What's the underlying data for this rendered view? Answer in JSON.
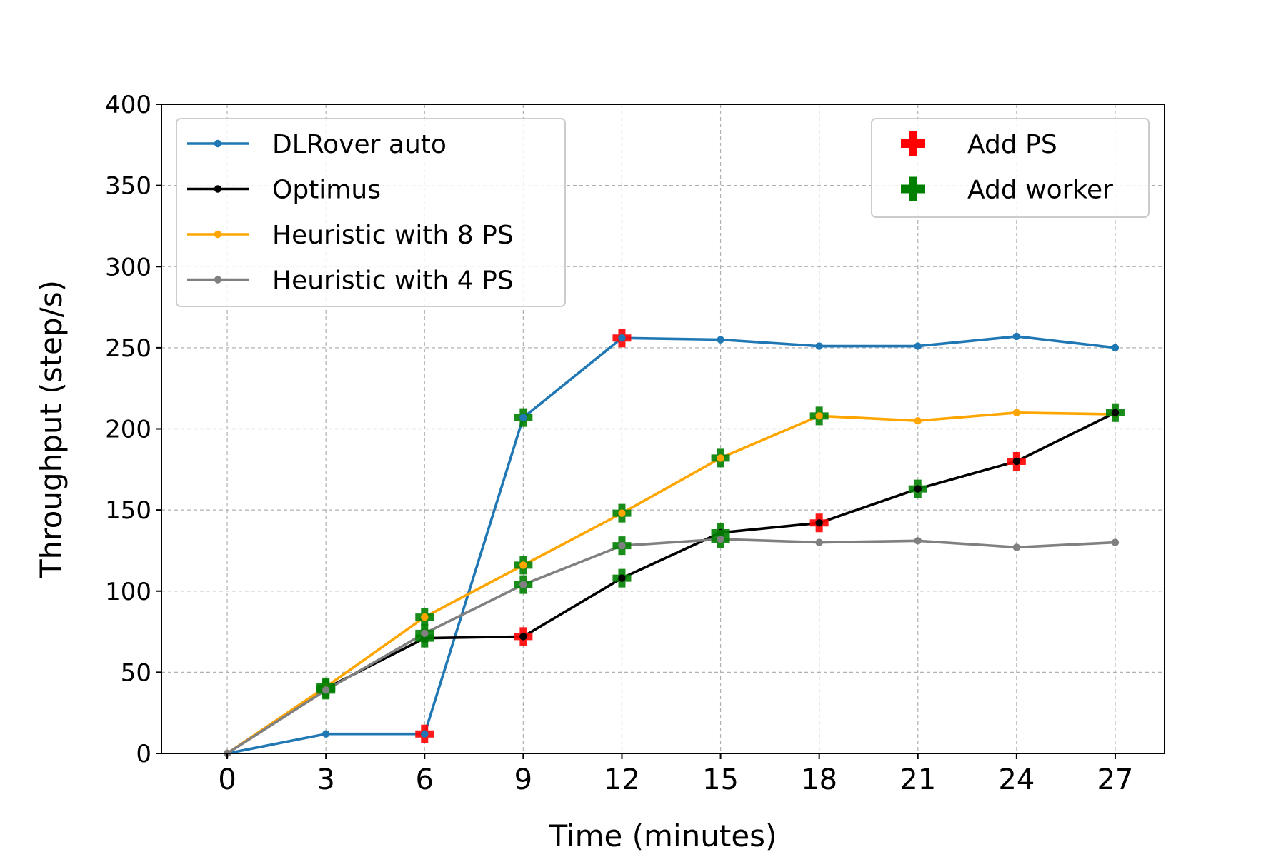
{
  "chart_data": {
    "type": "line",
    "xlabel": "Time (minutes)",
    "ylabel": "Throughput (step/s)",
    "xlim": [
      -2,
      28.5
    ],
    "ylim": [
      0,
      400
    ],
    "x_ticks": [
      0,
      3,
      6,
      9,
      12,
      15,
      18,
      21,
      24,
      27
    ],
    "y_ticks": [
      0,
      50,
      100,
      150,
      200,
      250,
      300,
      350,
      400
    ],
    "grid": true,
    "x": [
      0,
      3,
      6,
      9,
      12,
      15,
      18,
      21,
      24,
      27
    ],
    "series": [
      {
        "name": "DLRover auto",
        "color": "#1f77b4",
        "values": [
          0,
          12,
          12,
          207,
          256,
          255,
          251,
          251,
          257,
          250
        ]
      },
      {
        "name": "Optimus",
        "color": "#000000",
        "values": [
          0,
          40,
          71,
          72,
          108,
          136,
          142,
          163,
          180,
          210
        ]
      },
      {
        "name": "Heuristic with 8 PS",
        "color": "#ffa500",
        "values": [
          0,
          41,
          84,
          116,
          148,
          182,
          208,
          205,
          210,
          209
        ]
      },
      {
        "name": "Heuristic with 4 PS",
        "color": "#808080",
        "values": [
          0,
          39,
          74,
          104,
          128,
          132,
          130,
          131,
          127,
          130
        ]
      }
    ],
    "legend_position": "upper-left",
    "event_markers": {
      "legend_position": "upper-right",
      "types": [
        {
          "name": "Add PS",
          "color": "#ff0000"
        },
        {
          "name": "Add worker",
          "color": "#008000"
        }
      ],
      "points": [
        {
          "series": "DLRover auto",
          "x": 6,
          "y": 12,
          "type": "Add PS"
        },
        {
          "series": "DLRover auto",
          "x": 9,
          "y": 207,
          "type": "Add worker"
        },
        {
          "series": "DLRover auto",
          "x": 12,
          "y": 256,
          "type": "Add PS"
        },
        {
          "series": "Optimus",
          "x": 3,
          "y": 40,
          "type": "Add worker"
        },
        {
          "series": "Optimus",
          "x": 6,
          "y": 71,
          "type": "Add worker"
        },
        {
          "series": "Optimus",
          "x": 9,
          "y": 72,
          "type": "Add PS"
        },
        {
          "series": "Optimus",
          "x": 12,
          "y": 108,
          "type": "Add worker"
        },
        {
          "series": "Optimus",
          "x": 15,
          "y": 136,
          "type": "Add worker"
        },
        {
          "series": "Optimus",
          "x": 18,
          "y": 142,
          "type": "Add PS"
        },
        {
          "series": "Optimus",
          "x": 21,
          "y": 163,
          "type": "Add worker"
        },
        {
          "series": "Optimus",
          "x": 24,
          "y": 180,
          "type": "Add PS"
        },
        {
          "series": "Optimus",
          "x": 27,
          "y": 210,
          "type": "Add worker"
        },
        {
          "series": "Heuristic with 8 PS",
          "x": 3,
          "y": 41,
          "type": "Add worker"
        },
        {
          "series": "Heuristic with 8 PS",
          "x": 6,
          "y": 84,
          "type": "Add worker"
        },
        {
          "series": "Heuristic with 8 PS",
          "x": 9,
          "y": 116,
          "type": "Add worker"
        },
        {
          "series": "Heuristic with 8 PS",
          "x": 12,
          "y": 148,
          "type": "Add worker"
        },
        {
          "series": "Heuristic with 8 PS",
          "x": 15,
          "y": 182,
          "type": "Add worker"
        },
        {
          "series": "Heuristic with 8 PS",
          "x": 18,
          "y": 208,
          "type": "Add worker"
        },
        {
          "series": "Heuristic with 4 PS",
          "x": 3,
          "y": 39,
          "type": "Add worker"
        },
        {
          "series": "Heuristic with 4 PS",
          "x": 6,
          "y": 74,
          "type": "Add worker"
        },
        {
          "series": "Heuristic with 4 PS",
          "x": 9,
          "y": 104,
          "type": "Add worker"
        },
        {
          "series": "Heuristic with 4 PS",
          "x": 12,
          "y": 128,
          "type": "Add worker"
        },
        {
          "series": "Heuristic with 4 PS",
          "x": 15,
          "y": 132,
          "type": "Add worker"
        }
      ]
    }
  }
}
